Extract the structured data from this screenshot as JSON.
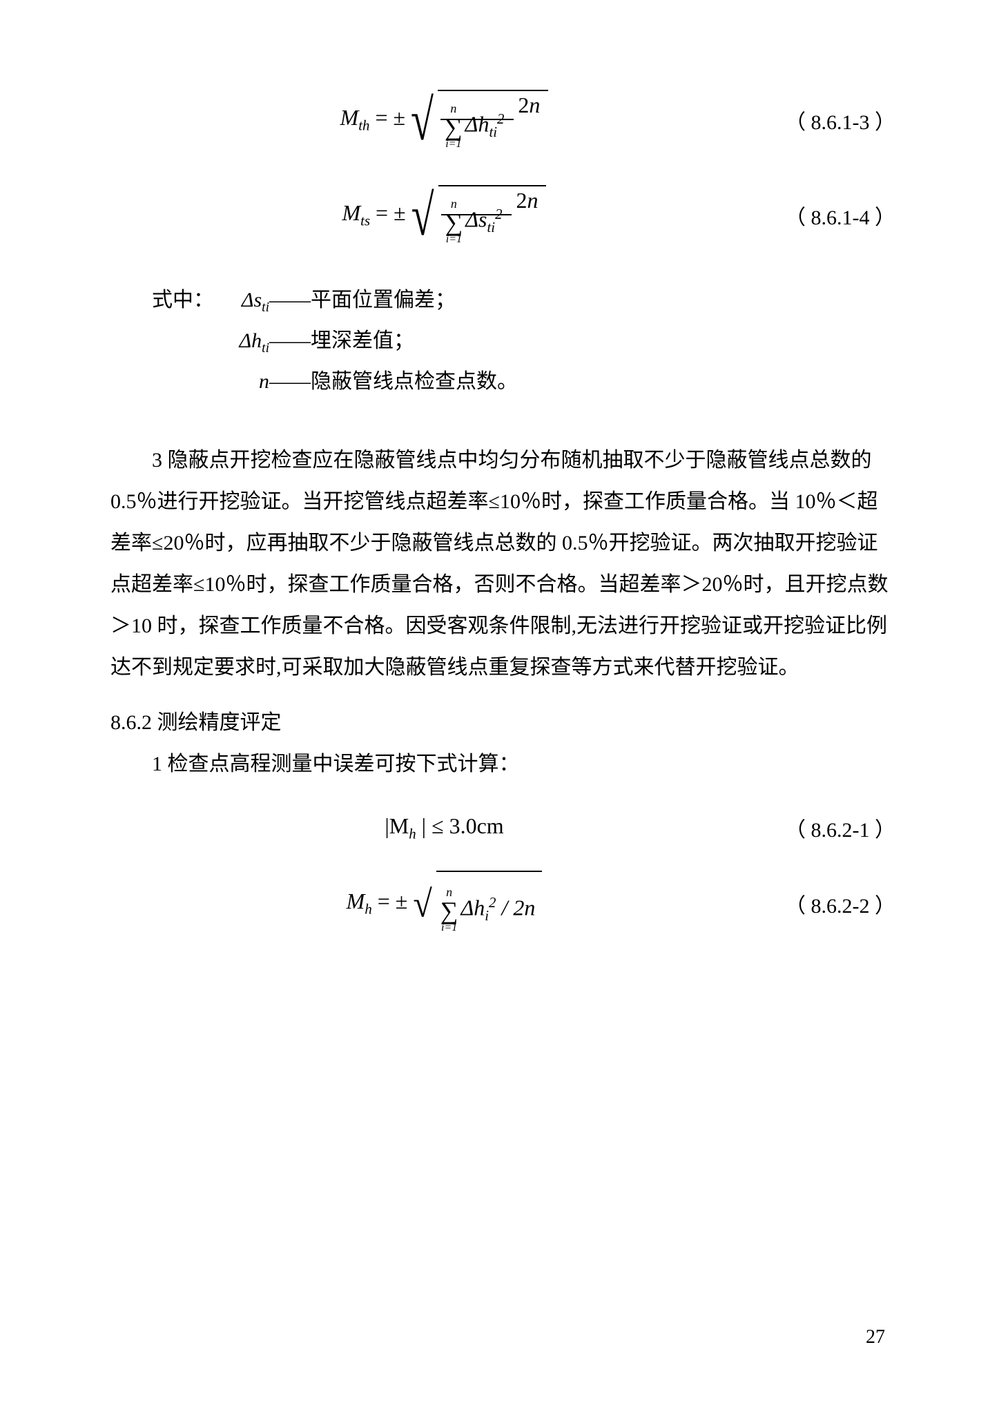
{
  "equations": {
    "eq1": {
      "lhs_main": "M",
      "lhs_sub": "th",
      "equals": " = ±",
      "sum_top": "n",
      "sum_bot": "i=1",
      "sum_body_base": "Δh",
      "sum_body_sub": "ti",
      "sum_body_sup": "2",
      "den_coef": "2",
      "den_var": "n",
      "label": "（ 8.6.1-3 ）"
    },
    "eq2": {
      "lhs_main": "M",
      "lhs_sub": "ts",
      "equals": " = ±",
      "sum_top": "n",
      "sum_bot": "i=1",
      "sum_body_base": "Δs",
      "sum_body_sub": "ti",
      "sum_body_sup": "2",
      "den_coef": "2",
      "den_var": "n",
      "label": "（ 8.6.1-4 ）"
    },
    "eq3": {
      "expr_pre": "|M",
      "expr_sub": "h",
      "expr_post": " | ≤ 3.0cm",
      "label": "（ 8.6.2-1 ）"
    },
    "eq4": {
      "lhs_main": "M",
      "lhs_sub": "h",
      "equals": " = ± ",
      "sum_top": "n",
      "sum_bot": "i=1",
      "body_base": "Δh",
      "body_sub": "i",
      "body_sup": "2",
      "tail": " / 2n",
      "label": "（ 8.6.2-2 ）"
    }
  },
  "legend": {
    "intro": "式中：",
    "item1_key": "Δs",
    "item1_sub": "ti",
    "item1_desc": "——平面位置偏差；",
    "item2_key": "Δh",
    "item2_sub": "ti",
    "item2_desc": "——埋深差值；",
    "item3_key": "n",
    "item3_desc": "——隐蔽管线点检查点数。"
  },
  "paragraph3_lead": "3",
  "paragraph3": " 隐蔽点开挖检查应在隐蔽管线点中均匀分布随机抽取不少于隐蔽管线点总数的 0.5％进行开挖验证。当开挖管线点超差率≤10％时，探查工作质量合格。当 10％＜超差率≤20％时，应再抽取不少于隐蔽管线点总数的 0.5％开挖验证。两次抽取开挖验证点超差率≤10％时，探查工作质量合格，否则不合格。当超差率＞20％时，且开挖点数＞10 时，探查工作质量不合格。因受客观条件限制,无法进行开挖验证或开挖验证比例达不到规定要求时,可采取加大隐蔽管线点重复探查等方式来代替开挖验证。",
  "section_862": "8.6.2  测绘精度评定",
  "item862_1": "1  检查点高程测量中误差可按下式计算：",
  "pageNumber": "27"
}
